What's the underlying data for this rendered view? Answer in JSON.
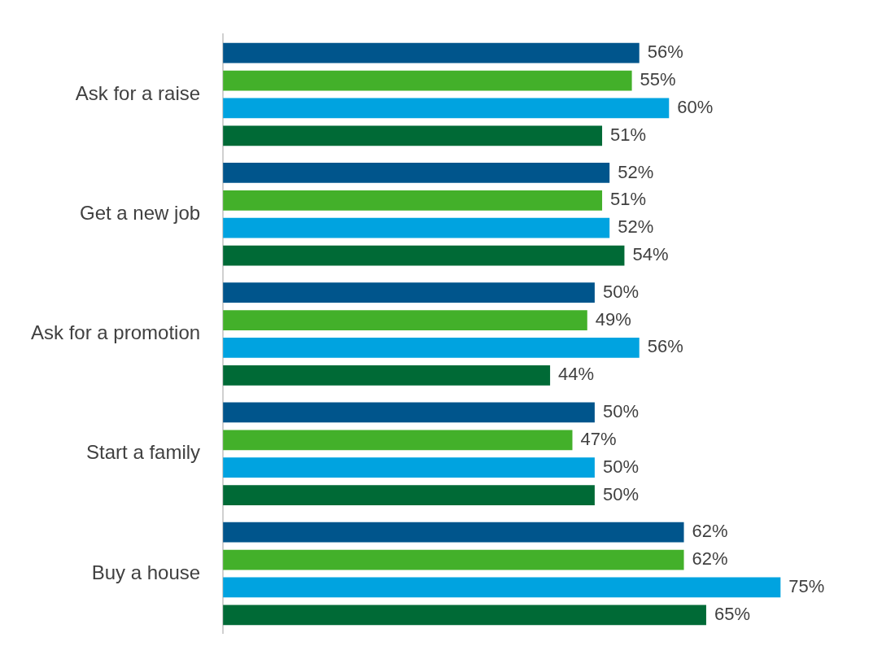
{
  "chart_data": {
    "type": "bar",
    "orientation": "horizontal",
    "categories": [
      "Ask for a raise",
      "Get a new job",
      "Ask for a promotion",
      "Start a family",
      "Buy a house"
    ],
    "series": [
      {
        "color": "#00558c",
        "values": [
          56,
          52,
          50,
          50,
          62
        ],
        "value_labels": [
          "56%",
          "52%",
          "50%",
          "50%",
          "62%"
        ]
      },
      {
        "color": "#43b02a",
        "values": [
          55,
          51,
          49,
          47,
          62
        ],
        "value_labels": [
          "55%",
          "51%",
          "49%",
          "47%",
          "62%"
        ]
      },
      {
        "color": "#00a3e0",
        "values": [
          60,
          52,
          56,
          50,
          75
        ],
        "value_labels": [
          "60%",
          "52%",
          "56%",
          "50%",
          "75%"
        ]
      },
      {
        "color": "#006a36",
        "values": [
          51,
          54,
          44,
          50,
          65
        ],
        "value_labels": [
          "51%",
          "54%",
          "44%",
          "50%",
          "65%"
        ]
      }
    ],
    "grid": false,
    "legend": false
  }
}
